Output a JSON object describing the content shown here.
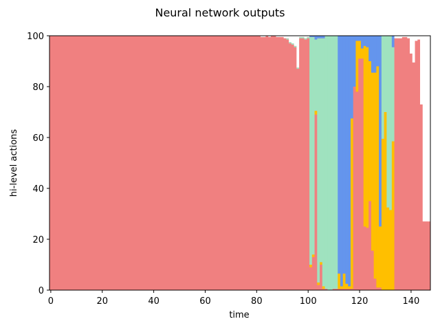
{
  "chart_data": {
    "type": "area",
    "title": "Neural network outputs",
    "xlabel": "time",
    "ylabel": "hi-level actions",
    "xlim": [
      -0.5,
      147.5
    ],
    "ylim": [
      0,
      100
    ],
    "xticks": [
      0,
      20,
      40,
      60,
      80,
      100,
      120,
      140
    ],
    "yticks": [
      0,
      20,
      40,
      60,
      80,
      100
    ],
    "grid": false,
    "legend": "none",
    "x_start": 0,
    "x_step": 1,
    "series": [
      {
        "color": "#f08080",
        "values": [
          100,
          100,
          100,
          100,
          100,
          100,
          100,
          100,
          100,
          100,
          100,
          100,
          100,
          100,
          100,
          100,
          100,
          100,
          100,
          100,
          100,
          100,
          100,
          100,
          100,
          100,
          100,
          100,
          100,
          100,
          100,
          100,
          100,
          100,
          100,
          100,
          100,
          100,
          100,
          100,
          100,
          100,
          100,
          100,
          100,
          100,
          100,
          100,
          100,
          100,
          100,
          100,
          100,
          100,
          100,
          100,
          100,
          100,
          100,
          100,
          100,
          100,
          100,
          100,
          100,
          100,
          100,
          100,
          100,
          100,
          100,
          100,
          100,
          100,
          100,
          100,
          100,
          100,
          100,
          100,
          100,
          100,
          99.5,
          99.5,
          100,
          99.5,
          100,
          100,
          99.5,
          99.5,
          99.5,
          99,
          98.5,
          97,
          96.5,
          95.5,
          87,
          99,
          99,
          98.5,
          99,
          99.5,
          9,
          13,
          69,
          2,
          10,
          0.5,
          0.5,
          0,
          0,
          0.5,
          0.5,
          0.5,
          0.5,
          0.5,
          0.5,
          0.5,
          0.5,
          91,
          91,
          90,
          25,
          24.5,
          35,
          15.5,
          4.5,
          1,
          1,
          0.5,
          0,
          0,
          0,
          0,
          99,
          99,
          99,
          99.5,
          99.5,
          99,
          93,
          89.5,
          98,
          98.5,
          73,
          27,
          27,
          27
        ]
      },
      {
        "color": "#ffbf00",
        "values": [
          0,
          0,
          0,
          0,
          0,
          0,
          0,
          0,
          0,
          0,
          0,
          0,
          0,
          0,
          0,
          0,
          0,
          0,
          0,
          0,
          0,
          0,
          0,
          0,
          0,
          0,
          0,
          0,
          0,
          0,
          0,
          0,
          0,
          0,
          0,
          0,
          0,
          0,
          0,
          0,
          0,
          0,
          0,
          0,
          0,
          0,
          0,
          0,
          0,
          0,
          0,
          0,
          0,
          0,
          0,
          0,
          0,
          0,
          0,
          0,
          0,
          0,
          0,
          0,
          0,
          0,
          0,
          0,
          0,
          0,
          0,
          0,
          0,
          0,
          0,
          0,
          0,
          0,
          0,
          0,
          0,
          0,
          0,
          0,
          0,
          0,
          0,
          0,
          0,
          0,
          0,
          0,
          0,
          0,
          0,
          0,
          0,
          0,
          0,
          0,
          0,
          0,
          0.5,
          0.5,
          0.5,
          1,
          0.5,
          1,
          1,
          0,
          0,
          0,
          0,
          0,
          0,
          0,
          0,
          0,
          0,
          0,
          0,
          0,
          0,
          0,
          0,
          0,
          0,
          0,
          0,
          59.5,
          70,
          32.5,
          31.5,
          58.5,
          0,
          0,
          0,
          0,
          0,
          0,
          0,
          0,
          0,
          0,
          0,
          0,
          0,
          0
        ]
      },
      {
        "color": "#9fe2bf",
        "values": [
          0,
          0,
          0,
          0,
          0,
          0,
          0,
          0,
          0,
          0,
          0,
          0,
          0,
          0,
          0,
          0,
          0,
          0,
          0,
          0,
          0,
          0,
          0,
          0,
          0,
          0,
          0,
          0,
          0,
          0,
          0,
          0,
          0,
          0,
          0,
          0,
          0,
          0,
          0,
          0,
          0,
          0,
          0,
          0,
          0,
          0,
          0,
          0,
          0,
          0,
          0,
          0,
          0,
          0,
          0,
          0,
          0,
          0,
          0,
          0,
          0,
          0,
          0,
          0,
          0,
          0,
          0,
          0,
          0,
          0,
          0,
          0,
          0,
          0,
          0,
          0,
          0,
          0,
          0,
          0,
          0,
          0,
          0,
          0,
          0,
          0,
          0,
          0,
          0,
          0,
          0,
          0,
          0.5,
          0.5,
          0.5,
          0.5,
          0.5,
          0.5,
          0.5,
          0.5,
          0.5,
          0.5,
          0.5,
          0.5,
          0.5,
          0.5,
          0.5,
          0.5,
          0.5,
          0.5,
          0.5,
          0.5,
          0.5,
          0.5,
          0.5,
          0.5,
          0.5,
          2,
          67,
          0,
          0,
          0,
          0,
          0,
          0,
          0,
          0,
          0,
          0,
          0,
          0,
          0,
          0,
          0,
          0,
          0,
          0,
          0,
          0,
          0,
          0,
          0,
          0,
          0,
          0,
          0,
          0,
          0
        ]
      },
      {
        "color": "#6495ed",
        "values": [
          0,
          0,
          0,
          0,
          0,
          0,
          0,
          0,
          0,
          0,
          0,
          0,
          0,
          0,
          0,
          0,
          0,
          0,
          0,
          0,
          0,
          0,
          0,
          0,
          0,
          0,
          0,
          0,
          0,
          0,
          0,
          0,
          0,
          0,
          0,
          0,
          0,
          0,
          0,
          0,
          0,
          0,
          0,
          0,
          0,
          0,
          0,
          0,
          0,
          0,
          0,
          0,
          0,
          0,
          0,
          0,
          0,
          0,
          0,
          0,
          0,
          0,
          0,
          0,
          0,
          0,
          0,
          0,
          0,
          0,
          0,
          0,
          0,
          0,
          0,
          0,
          0,
          0,
          0,
          0,
          0,
          0,
          0,
          0,
          0,
          0,
          0,
          0,
          0,
          0,
          0,
          0,
          0,
          0,
          0,
          0,
          0,
          0,
          0,
          0,
          0,
          0,
          0,
          0,
          0,
          0,
          0,
          0,
          0,
          0,
          0,
          0,
          0,
          0,
          0,
          0,
          0,
          0,
          0,
          0,
          0,
          0,
          0,
          0,
          0,
          0,
          0,
          0,
          0,
          0,
          0,
          0,
          0,
          0,
          0,
          0,
          0,
          0,
          0,
          0,
          0,
          0,
          0,
          0,
          0,
          0,
          0,
          0
        ]
      },
      {
        "color": "#f08080",
        "values": [
          0,
          0,
          0,
          0,
          0,
          0,
          0,
          0,
          0,
          0,
          0,
          0,
          0,
          0,
          0,
          0,
          0,
          0,
          0,
          0,
          0,
          0,
          0,
          0,
          0,
          0,
          0,
          0,
          0,
          0,
          0,
          0,
          0,
          0,
          0,
          0,
          0,
          0,
          0,
          0,
          0,
          0,
          0,
          0,
          0,
          0,
          0,
          0,
          0,
          0,
          0,
          0,
          0,
          0,
          0,
          0,
          0,
          0,
          0,
          0,
          0,
          0,
          0,
          0,
          0,
          0,
          0,
          0,
          0,
          0,
          0,
          0,
          0,
          0,
          0,
          0,
          0,
          0,
          0,
          0,
          0,
          0,
          0,
          0,
          0,
          0,
          0,
          0,
          0,
          0,
          0,
          0,
          0,
          0,
          0,
          0,
          0,
          0,
          0,
          0,
          0,
          0,
          0,
          0,
          0,
          0,
          0,
          0,
          0,
          0,
          0,
          0,
          0,
          0,
          0,
          0,
          0,
          0,
          0,
          0,
          0,
          0,
          0,
          0,
          0,
          0,
          0,
          0,
          0,
          0,
          0,
          0,
          0,
          0,
          0,
          0,
          0,
          0,
          0,
          0,
          0,
          0,
          0,
          0,
          0,
          0,
          0,
          0
        ]
      }
    ],
    "columns": [
      [
        101,
        [
          9,
          1,
          89.5,
          0.5
        ]
      ],
      [
        102,
        [
          13,
          1,
          85.5,
          0.5
        ]
      ],
      [
        103,
        [
          69,
          1.5,
          28,
          1.5
        ]
      ],
      [
        104,
        [
          2,
          1,
          96,
          1
        ]
      ],
      [
        105,
        [
          10,
          1,
          88,
          1
        ]
      ],
      [
        106,
        [
          0.5,
          1,
          97.5,
          1
        ]
      ],
      [
        107,
        [
          0.5,
          0,
          99.5,
          0
        ]
      ],
      [
        108,
        [
          0,
          0,
          100,
          0
        ]
      ],
      [
        109,
        [
          0,
          0,
          100,
          0
        ]
      ],
      [
        110,
        [
          0.5,
          0,
          99.5,
          0
        ]
      ],
      [
        111,
        [
          0.5,
          0,
          99.5,
          0
        ]
      ],
      [
        112,
        [
          0.5,
          6,
          0,
          93.5
        ]
      ],
      [
        113,
        [
          0.5,
          1,
          0,
          98.5
        ]
      ],
      [
        114,
        [
          0.5,
          6,
          0,
          93.5
        ]
      ],
      [
        115,
        [
          0.5,
          2,
          0,
          97.5
        ]
      ],
      [
        116,
        [
          0.5,
          1,
          0,
          98.5
        ]
      ],
      [
        117,
        [
          0.5,
          67,
          0,
          32.5
        ]
      ],
      [
        118,
        [
          80,
          0,
          0,
          20
        ]
      ],
      [
        119,
        [
          78,
          20,
          0,
          2
        ]
      ],
      [
        120,
        [
          91,
          7,
          0,
          2
        ]
      ],
      [
        121,
        [
          91,
          4,
          0,
          5
        ]
      ],
      [
        122,
        [
          25,
          71,
          0,
          4
        ]
      ],
      [
        123,
        [
          24.5,
          71,
          0,
          4.5
        ]
      ],
      [
        124,
        [
          35,
          55,
          0,
          10
        ]
      ],
      [
        125,
        [
          15.5,
          70,
          0,
          14.5
        ]
      ],
      [
        126,
        [
          4.5,
          81,
          0,
          14.5
        ]
      ],
      [
        127,
        [
          1,
          87,
          0,
          12
        ]
      ],
      [
        128,
        [
          1,
          24,
          0,
          75
        ]
      ],
      [
        129,
        [
          0,
          59.5,
          40.5,
          0
        ]
      ],
      [
        130,
        [
          0,
          70,
          30,
          0
        ]
      ],
      [
        131,
        [
          0,
          32.5,
          67.5,
          0
        ]
      ],
      [
        132,
        [
          0,
          31.5,
          68.5,
          0
        ]
      ],
      [
        133,
        [
          0,
          58.5,
          37,
          4.5
        ]
      ]
    ]
  }
}
